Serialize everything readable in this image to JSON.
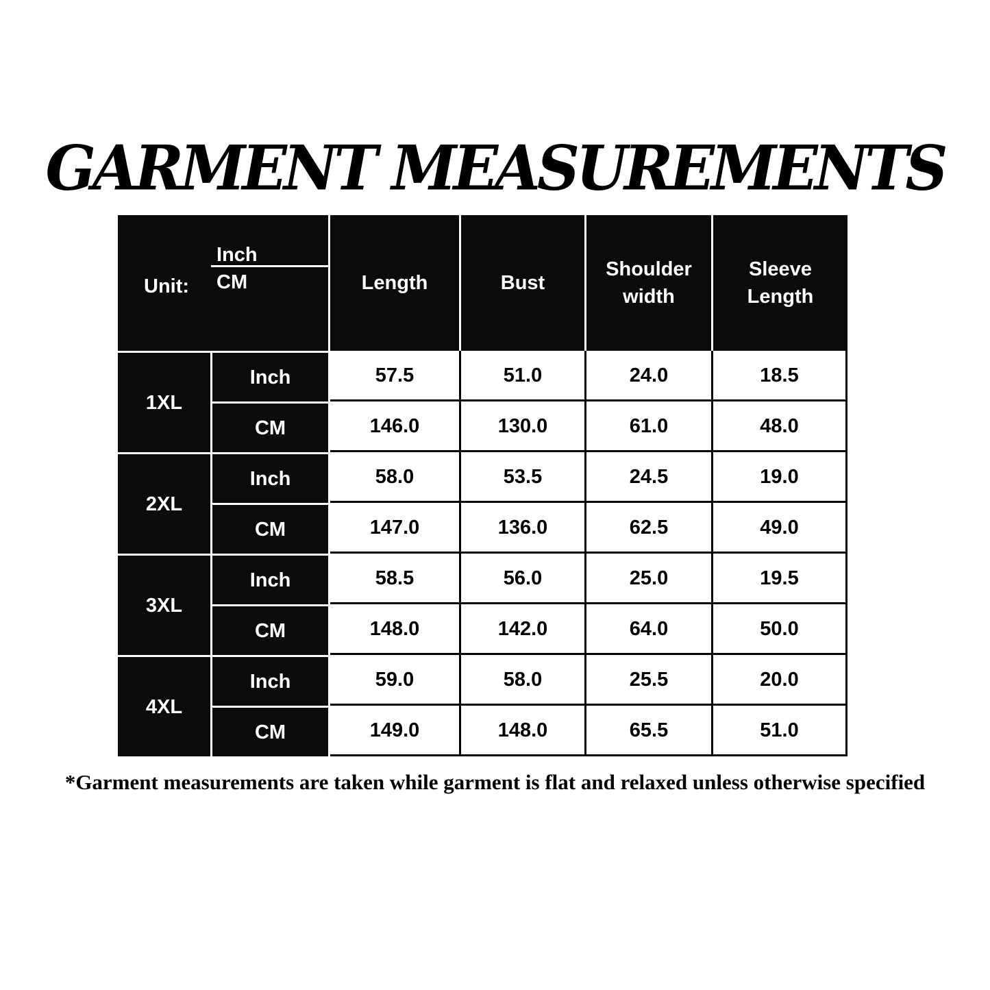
{
  "title": "GARMENT MEASUREMENTS",
  "header": {
    "unit_label": "Unit:",
    "unit_inch": "Inch",
    "unit_cm": "CM",
    "columns": [
      "Length",
      "Bust",
      "Shoulder width",
      "Sleeve Length"
    ]
  },
  "rows": [
    {
      "size": "1XL",
      "inch": {
        "unit": "Inch",
        "values": [
          "57.5",
          "51.0",
          "24.0",
          "18.5"
        ]
      },
      "cm": {
        "unit": "CM",
        "values": [
          "146.0",
          "130.0",
          "61.0",
          "48.0"
        ]
      }
    },
    {
      "size": "2XL",
      "inch": {
        "unit": "Inch",
        "values": [
          "58.0",
          "53.5",
          "24.5",
          "19.0"
        ]
      },
      "cm": {
        "unit": "CM",
        "values": [
          "147.0",
          "136.0",
          "62.5",
          "49.0"
        ]
      }
    },
    {
      "size": "3XL",
      "inch": {
        "unit": "Inch",
        "values": [
          "58.5",
          "56.0",
          "25.0",
          "19.5"
        ]
      },
      "cm": {
        "unit": "CM",
        "values": [
          "148.0",
          "142.0",
          "64.0",
          "50.0"
        ]
      }
    },
    {
      "size": "4XL",
      "inch": {
        "unit": "Inch",
        "values": [
          "59.0",
          "58.0",
          "25.5",
          "20.0"
        ]
      },
      "cm": {
        "unit": "CM",
        "values": [
          "149.0",
          "148.0",
          "65.5",
          "51.0"
        ]
      }
    }
  ],
  "footnote": "*Garment measurements are taken while garment is flat and relaxed unless otherwise specified"
}
